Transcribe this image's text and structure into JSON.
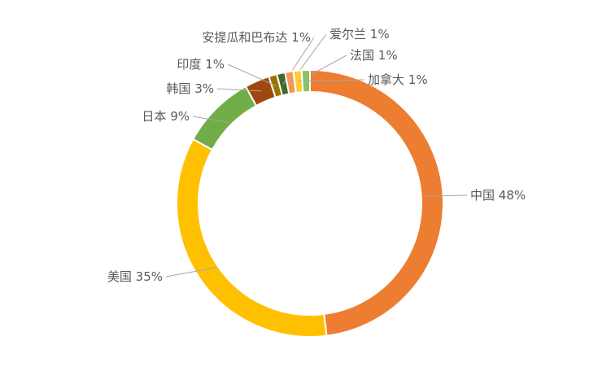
{
  "chart_data": {
    "type": "donut",
    "categories": [
      "中国",
      "美国",
      "日本",
      "韩国",
      "印度",
      "安提瓜和巴布达",
      "爱尔兰",
      "法国",
      "加拿大"
    ],
    "values": [
      48,
      35,
      9,
      3,
      1,
      1,
      1,
      1,
      1
    ],
    "value_labels": [
      "48%",
      "35%",
      "9%",
      "3%",
      "1%",
      "1%",
      "1%",
      "1%",
      "1%"
    ],
    "colors": [
      "#ed7d31",
      "#ffc000",
      "#70ad47",
      "#9e480e",
      "#997300",
      "#43682b",
      "#f1975a",
      "#ffcd33",
      "#8cc168"
    ]
  }
}
